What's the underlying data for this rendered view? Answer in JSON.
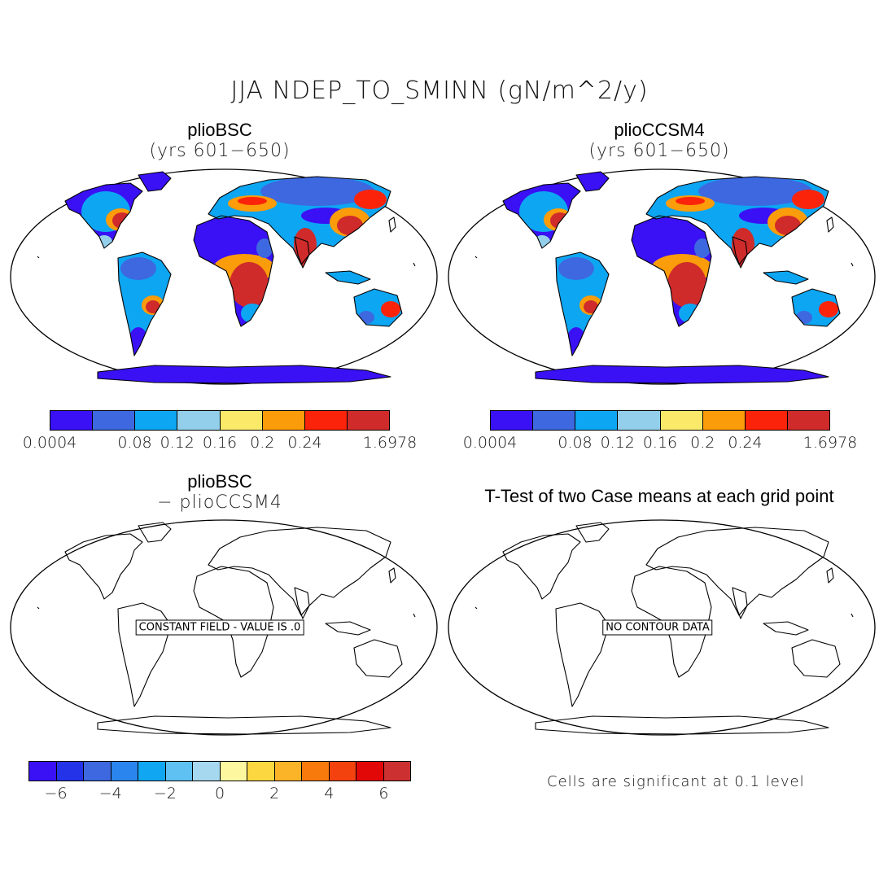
{
  "figure": {
    "title": "JJA NDEP_TO_SMINN (gN/m^2/y)"
  },
  "panels": [
    {
      "title": "plioBSC",
      "subtitle": "(yrs 601−650)",
      "type": "filled-map"
    },
    {
      "title": "plioCCSM4",
      "subtitle": "(yrs 601−650)",
      "type": "filled-map"
    },
    {
      "title": "plioBSC",
      "subtitle": "− plioCCSM4",
      "type": "difference-map",
      "message": "CONSTANT FIELD - VALUE IS .0"
    },
    {
      "title": "T-Test of two Case means at each grid point",
      "type": "ttest-map",
      "message": "NO CONTOUR DATA"
    }
  ],
  "colorbars": {
    "top": {
      "colors": [
        "#3a10f5",
        "#3d68e0",
        "#0da6f2",
        "#93cfea",
        "#fbe96a",
        "#fb9c0a",
        "#fb240a",
        "#cf2b2b"
      ],
      "labels": [
        "0.0004",
        "0.08",
        "0.12",
        "0.16",
        "0.2",
        "0.24",
        "1.6978"
      ]
    },
    "difference": {
      "colors": [
        "#3a10f5",
        "#2433e8",
        "#3d68e0",
        "#2a86ee",
        "#10a6f2",
        "#5ec1f2",
        "#a6d8ef",
        "#fdf7a0",
        "#fdd740",
        "#fbb327",
        "#f97a0c",
        "#f4420f",
        "#e30808",
        "#cc3030"
      ],
      "labels": [
        "−6",
        "−4",
        "−2",
        "0",
        "2",
        "4",
        "6"
      ]
    }
  },
  "note": "Cells are significant at 0.1 level",
  "style": {
    "ocean": "#ffffff",
    "land_low": "#3a10f5",
    "land_mid": "#0da6f2",
    "land_high": "#cf2b2b",
    "coastline": "#000000"
  }
}
